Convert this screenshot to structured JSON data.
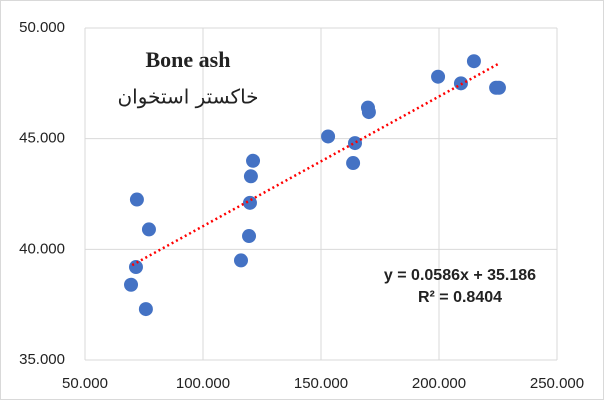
{
  "chart_data": {
    "type": "scatter",
    "title": "Bone ash",
    "subtitle": "خاکستر استخوان",
    "x": [
      72.0,
      77.1,
      71.6,
      69.5,
      75.8,
      116.1,
      119.5,
      119.9,
      120.3,
      121.2,
      153.0,
      164.4,
      163.6,
      169.9,
      170.3,
      199.6,
      209.3,
      214.8,
      224.2,
      225.4
    ],
    "values": [
      42.25,
      40.9,
      39.2,
      38.4,
      37.3,
      39.5,
      40.6,
      42.1,
      43.3,
      44.0,
      45.1,
      44.8,
      43.9,
      46.4,
      46.2,
      47.8,
      47.5,
      48.5,
      47.3,
      47.3
    ],
    "color": "#4472c4",
    "trendline": {
      "slope": 0.0586,
      "intercept": 35.186,
      "x_range": [
        70,
        225
      ],
      "color": "#ff0000",
      "equation": "y = 0.0586x + 35.186",
      "r_squared_label": "R² = 0.8404"
    },
    "xlim": [
      50,
      250
    ],
    "xticks": [
      {
        "value": 50,
        "label": "50.000"
      },
      {
        "value": 100,
        "label": "100.000"
      },
      {
        "value": 150,
        "label": "150.000"
      },
      {
        "value": 200,
        "label": "200.000"
      },
      {
        "value": 250,
        "label": "250.000"
      }
    ],
    "ylim": [
      35,
      50
    ],
    "yticks": [
      {
        "value": 35,
        "label": "35.000"
      },
      {
        "value": 40,
        "label": "40.000"
      },
      {
        "value": 45,
        "label": "45.000"
      },
      {
        "value": 50,
        "label": "50.000"
      }
    ],
    "grid": true
  }
}
